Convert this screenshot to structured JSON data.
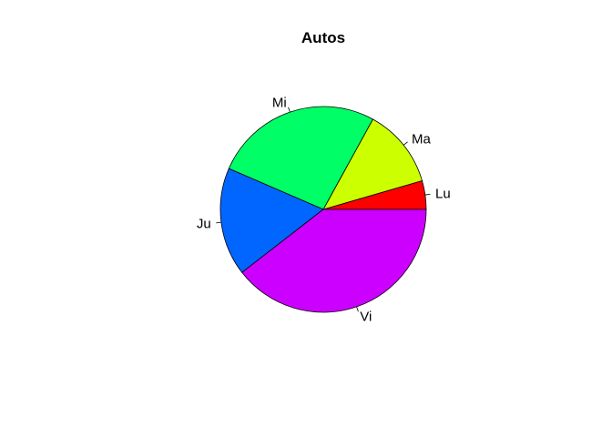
{
  "chart_data": {
    "type": "pie",
    "title": "Autos",
    "categories": [
      "Lu",
      "Ma",
      "Mi",
      "Ju",
      "Vi"
    ],
    "values": [
      4.5,
      12.5,
      26.5,
      17,
      39.5
    ],
    "colors": [
      "#FF0000",
      "#CCFF00",
      "#00FF66",
      "#0066FF",
      "#CC00FF"
    ],
    "direction": "counterclockwise",
    "start_angle_deg": 0,
    "legend": "none"
  }
}
